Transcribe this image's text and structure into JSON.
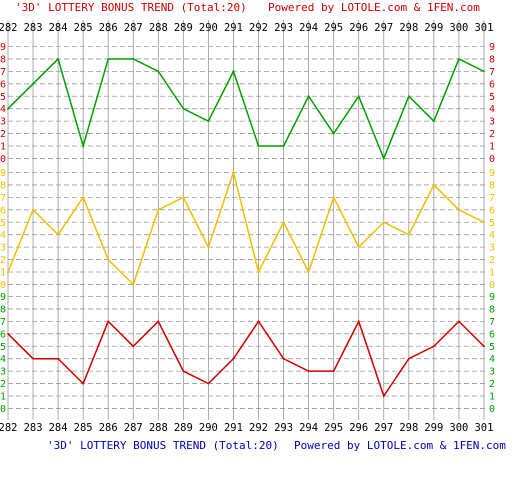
{
  "header": {
    "trend_title": "'3D' LOTTERY BONUS TREND (Total:20)",
    "powered_by": "Powered by LOTOLE.com & 1FEN.com"
  },
  "footer": {
    "trend_title": "'3D' LOTTERY BONUS TREND (Total:20)",
    "powered_by": "Powered by LOTOLE.com & 1FEN.com"
  },
  "chart_data": {
    "type": "line",
    "x": [
      282,
      283,
      284,
      285,
      286,
      287,
      288,
      289,
      290,
      291,
      292,
      293,
      294,
      295,
      296,
      297,
      298,
      299,
      300,
      301
    ],
    "ylim": [
      0,
      9
    ],
    "grid": true,
    "series": [
      {
        "color": "#00a000",
        "values": [
          4,
          6,
          8,
          1,
          8,
          8,
          7,
          4,
          3,
          7,
          1,
          1,
          5,
          2,
          5,
          0,
          5,
          3,
          8,
          7
        ]
      },
      {
        "color": "#f0c000",
        "values": [
          1,
          6,
          4,
          7,
          2,
          0,
          6,
          7,
          3,
          9,
          1,
          5,
          1,
          7,
          3,
          5,
          4,
          8,
          6,
          5
        ]
      },
      {
        "color": "#d00000",
        "values": [
          6,
          4,
          4,
          2,
          7,
          5,
          7,
          3,
          2,
          4,
          7,
          4,
          3,
          3,
          7,
          1,
          4,
          5,
          7,
          5
        ]
      }
    ],
    "tick_labels": [
      "0",
      "1",
      "2",
      "3",
      "4",
      "5",
      "6",
      "7",
      "8",
      "9"
    ],
    "tick_label_colors": [
      "#d00000",
      "#f0c000",
      "#00a000"
    ]
  },
  "colors": {
    "header_title": "#d00000",
    "footer_text": "#0000c0",
    "axis_text": "#000000",
    "grid_line": "#999999"
  }
}
